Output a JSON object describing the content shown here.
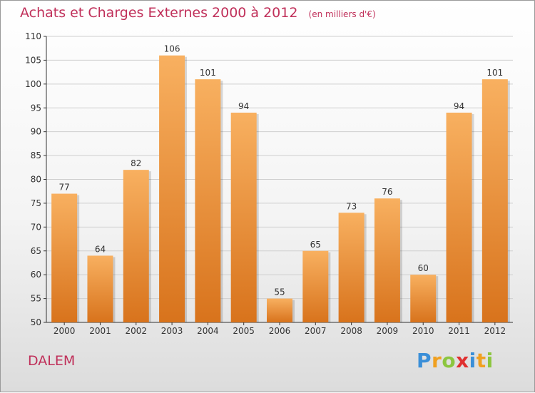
{
  "title": "Achats et Charges Externes 2000 à 2012",
  "unit": "(en milliers d'€)",
  "commune": "DALEM",
  "brand": {
    "letters": [
      {
        "ch": "P",
        "color": "#3b8fd8"
      },
      {
        "ch": "r",
        "color": "#f0a020"
      },
      {
        "ch": "o",
        "color": "#8cc63f"
      },
      {
        "ch": "x",
        "color": "#e03030"
      },
      {
        "ch": "i",
        "color": "#3b8fd8"
      },
      {
        "ch": "t",
        "color": "#f0a020"
      },
      {
        "ch": "i",
        "color": "#8cc63f"
      }
    ]
  },
  "colors": {
    "bar_light": "#f8b060",
    "bar_dark": "#d8731c",
    "axis": "#333333",
    "grid": "#cfcfcf"
  },
  "chart_data": {
    "type": "bar",
    "title": "Achats et Charges Externes 2000 à 2012",
    "xlabel": "",
    "ylabel": "",
    "categories": [
      "2000",
      "2001",
      "2002",
      "2003",
      "2004",
      "2005",
      "2006",
      "2007",
      "2008",
      "2009",
      "2010",
      "2011",
      "2012"
    ],
    "values": [
      77,
      64,
      82,
      106,
      101,
      94,
      55,
      65,
      73,
      76,
      60,
      94,
      101
    ],
    "ylim": [
      50,
      110
    ],
    "yticks": [
      50,
      55,
      60,
      65,
      70,
      75,
      80,
      85,
      90,
      95,
      100,
      105,
      110
    ],
    "grid": true
  }
}
